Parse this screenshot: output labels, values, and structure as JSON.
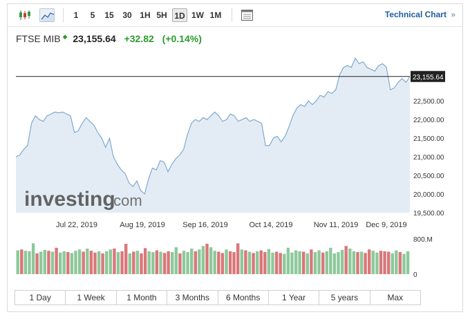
{
  "toolbar": {
    "timeframes": [
      "1",
      "5",
      "15",
      "30",
      "1H",
      "5H",
      "1D",
      "1W",
      "1M"
    ],
    "active_timeframe": "1D",
    "technical_chart_label": "Technical Chart",
    "technical_chart_arrow": "»"
  },
  "quote": {
    "name": "FTSE MIB",
    "price": "23,155.64",
    "change": "+32.82",
    "change_pct": "(+0.14%)"
  },
  "watermark": {
    "brand": "investing",
    "suffix": ".com"
  },
  "colors": {
    "up": "#2c9b2c",
    "line": "#7fa9cf",
    "fill": "#e3ecf5",
    "vol_up": "#8dc89a",
    "vol_down": "#d9777a",
    "link": "#1f5b9e"
  },
  "chart_data": {
    "type": "line",
    "x_ticks": [
      "Jul 22, 2019",
      "Aug 19, 2019",
      "Sep 16, 2019",
      "Oct 14, 2019",
      "Nov 11, 2019",
      "Dec 9, 2019"
    ],
    "y_ticks": [
      "19,500.00",
      "20,000.00",
      "20,500.00",
      "21,000.00",
      "21,500.00",
      "22,000.00",
      "22,500.00",
      "23,155.64"
    ],
    "ylim": [
      19500,
      23800
    ],
    "current_price_label": "23,155.64",
    "current_price": 23155.64,
    "values": [
      21000,
      21050,
      21200,
      21300,
      21900,
      22100,
      22000,
      21950,
      22100,
      22150,
      22200,
      22180,
      22200,
      22150,
      22100,
      21650,
      21700,
      21900,
      22050,
      21950,
      21850,
      21650,
      21500,
      21250,
      21500,
      21000,
      20800,
      20650,
      20550,
      20300,
      20200,
      20350,
      20100,
      20000,
      20400,
      20700,
      20650,
      20900,
      20850,
      20600,
      20800,
      20950,
      21050,
      21200,
      21600,
      21900,
      22000,
      21950,
      22050,
      22000,
      22100,
      22200,
      22100,
      21950,
      22000,
      22150,
      22100,
      21950,
      22000,
      22050,
      21950,
      22000,
      21950,
      21900,
      21300,
      21300,
      21500,
      21550,
      21400,
      21550,
      21800,
      22100,
      22300,
      22400,
      22350,
      22500,
      22400,
      22500,
      22650,
      22600,
      22750,
      22700,
      22800,
      23200,
      23400,
      23450,
      23400,
      23650,
      23500,
      23550,
      23400,
      23350,
      23300,
      23450,
      23500,
      23400,
      22800,
      22850,
      23000,
      23100,
      23000,
      23155.64
    ],
    "volume_label": "800.M",
    "volume_zero_label": "0",
    "volume_max": 800,
    "volumes": [
      540,
      560,
      530,
      520,
      700,
      470,
      510,
      550,
      530,
      510,
      600,
      490,
      520,
      500,
      480,
      530,
      560,
      510,
      580,
      530,
      490,
      520,
      470,
      520,
      560,
      580,
      500,
      520,
      690,
      470,
      510,
      530,
      470,
      590,
      520,
      500,
      540,
      510,
      480,
      520,
      500,
      610,
      470,
      530,
      500,
      580,
      520,
      560,
      640,
      690,
      610,
      530,
      510,
      480,
      560,
      520,
      500,
      700,
      560,
      540,
      510,
      480,
      520,
      540,
      500,
      570,
      490,
      510,
      480,
      460,
      600,
      490,
      540,
      520,
      510,
      470,
      560,
      500,
      540,
      490,
      520,
      600,
      470,
      500,
      550,
      640,
      580,
      520,
      500,
      510,
      480,
      560,
      530,
      490,
      530,
      520,
      510,
      470,
      540,
      500,
      460,
      520
    ],
    "volume_up": [
      1,
      0,
      1,
      1,
      1,
      0,
      1,
      1,
      0,
      1,
      0,
      1,
      1,
      0,
      1,
      1,
      1,
      0,
      1,
      0,
      0,
      1,
      0,
      1,
      1,
      0,
      1,
      0,
      0,
      1,
      0,
      1,
      0,
      0,
      1,
      1,
      0,
      1,
      0,
      0,
      1,
      1,
      0,
      1,
      1,
      1,
      0,
      1,
      1,
      0,
      1,
      1,
      0,
      0,
      1,
      0,
      0,
      0,
      1,
      0,
      1,
      0,
      1,
      0,
      0,
      1,
      1,
      0,
      0,
      1,
      1,
      1,
      1,
      1,
      0,
      1,
      0,
      1,
      1,
      0,
      1,
      1,
      1,
      1,
      1,
      0,
      1,
      1,
      0,
      1,
      0,
      0,
      1,
      1,
      0,
      0,
      0,
      1,
      1,
      0,
      1,
      1
    ]
  },
  "range_buttons": [
    "1 Day",
    "1 Week",
    "1 Month",
    "3 Months",
    "6 Months",
    "1 Year",
    "5 years",
    "Max"
  ]
}
